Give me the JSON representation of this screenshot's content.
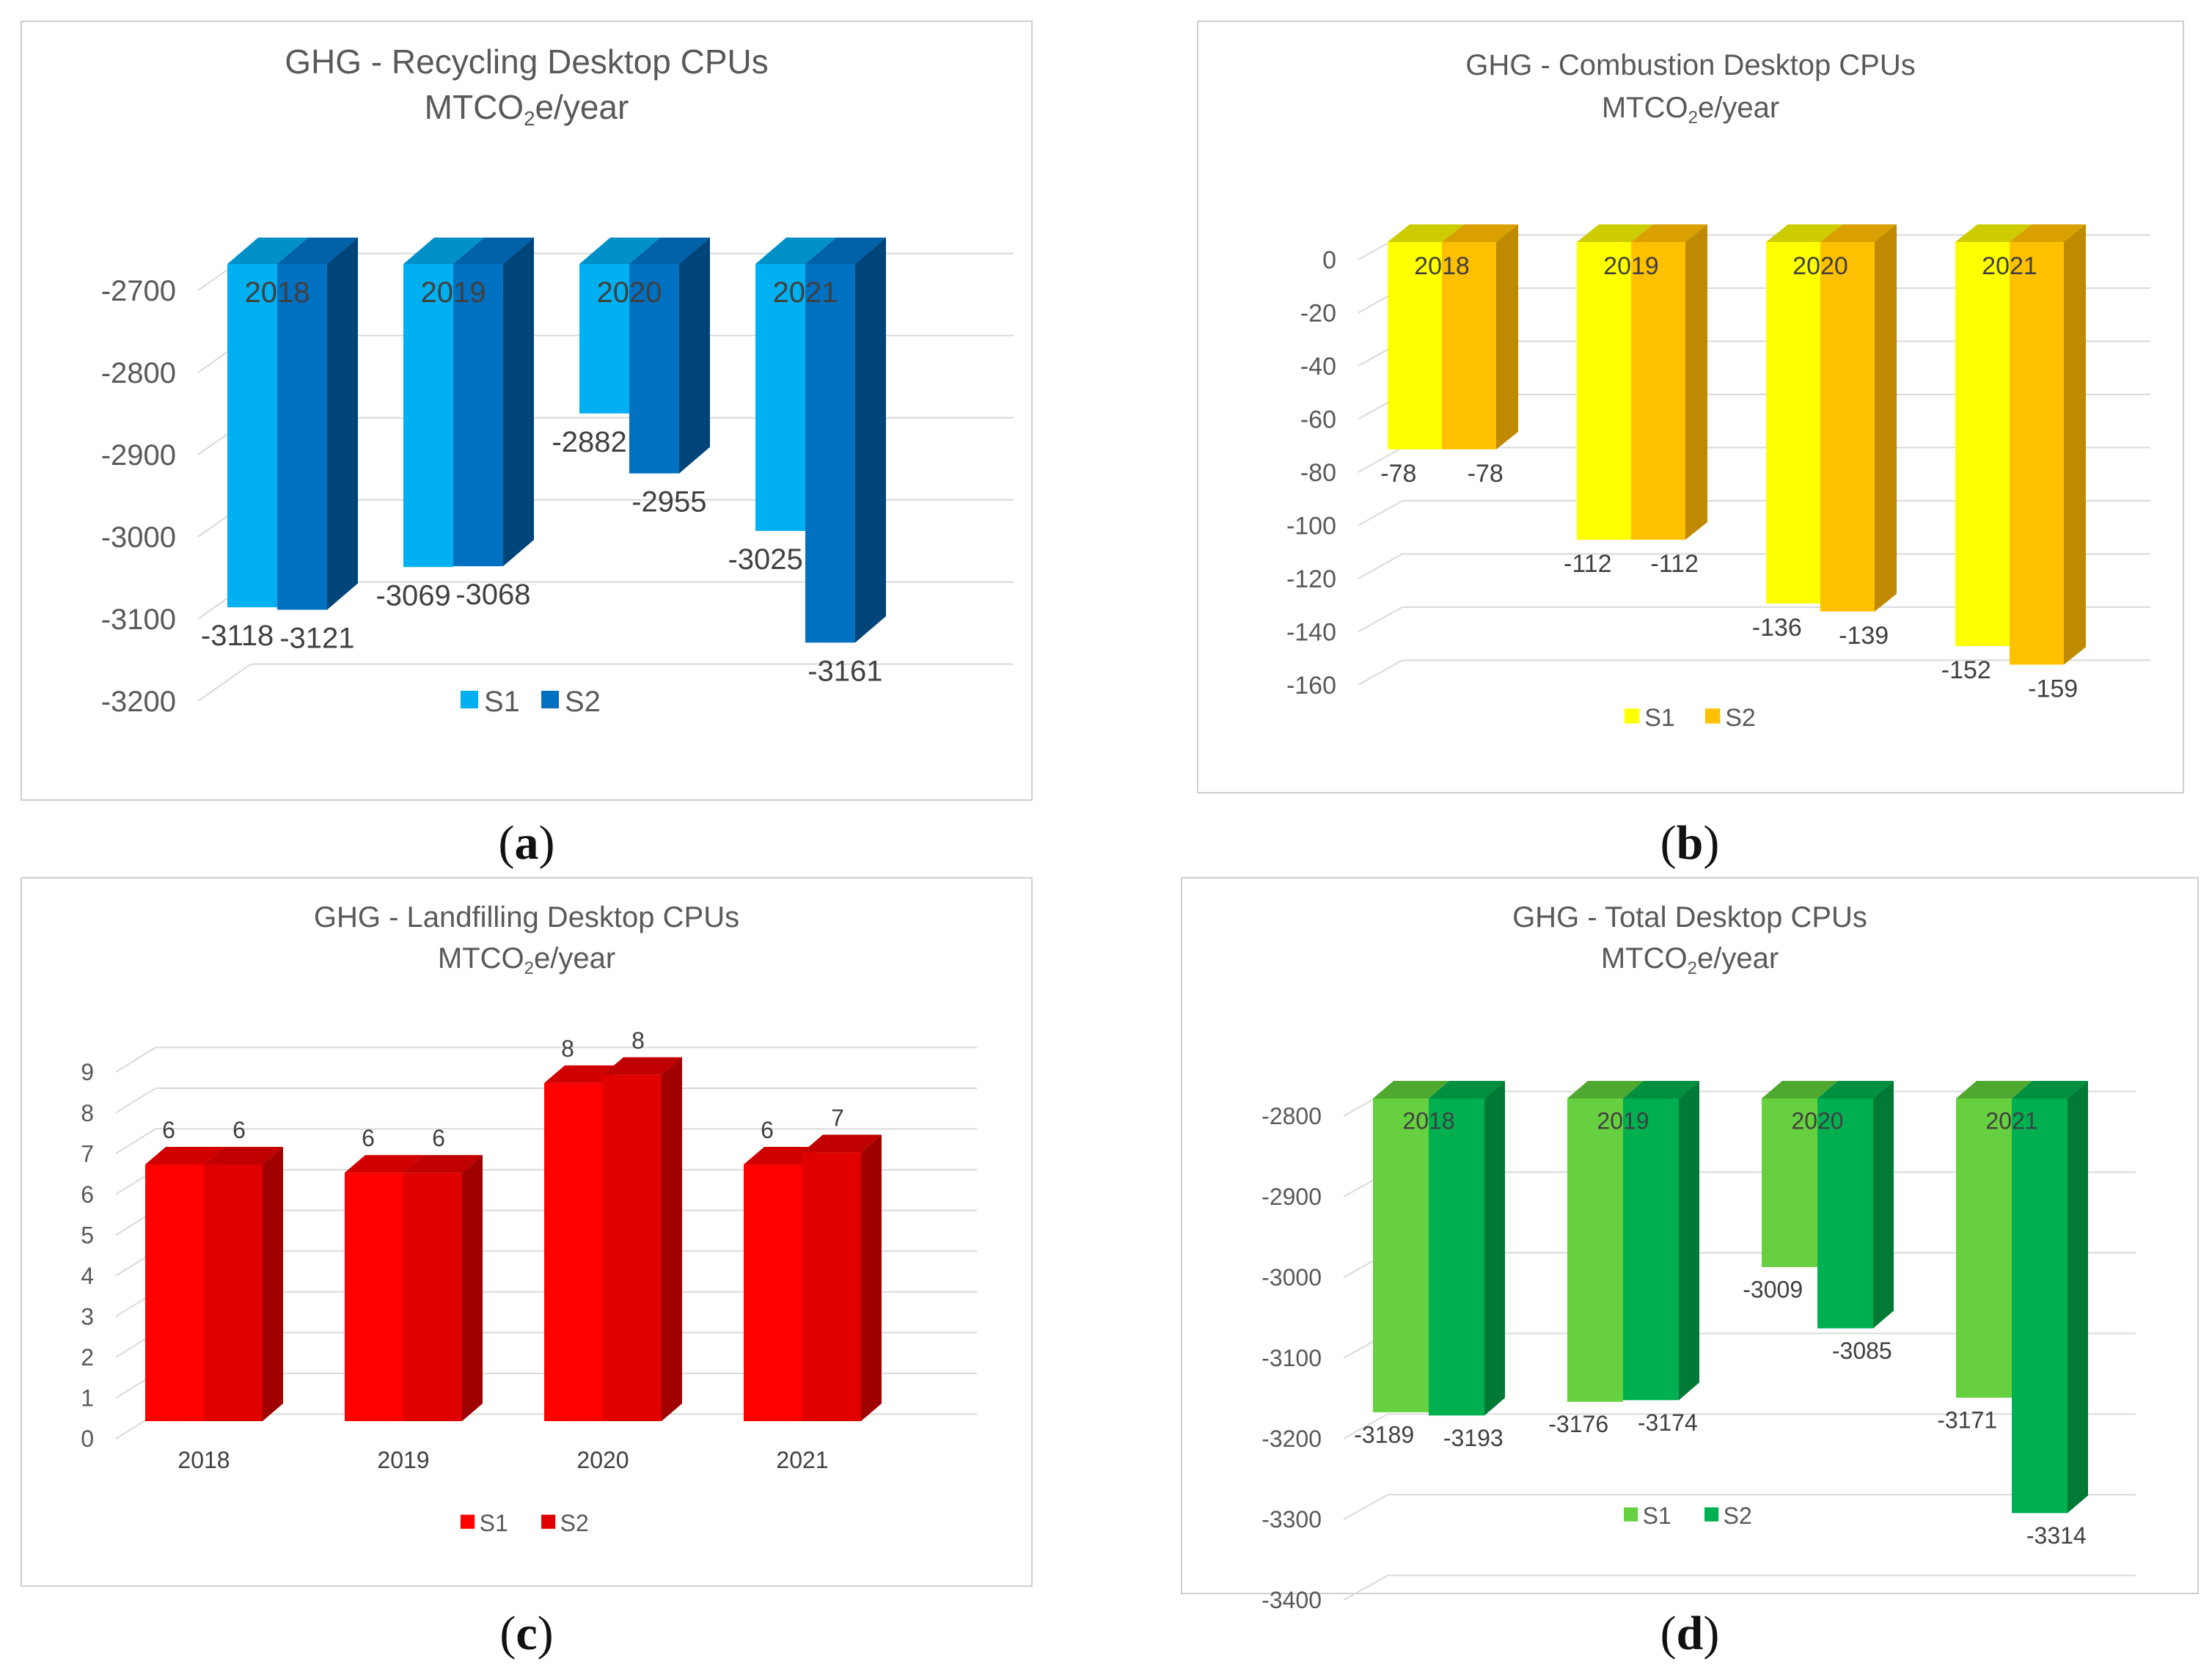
{
  "panel_labels": [
    "a",
    "b",
    "c",
    "d"
  ],
  "chart_data": [
    {
      "id": "a",
      "type": "bar",
      "title_line1": "GHG  - Recycling Desktop CPUs",
      "title_line2_pre": "MTCO",
      "title_line2_sub": "2",
      "title_line2_post": "e/year",
      "categories": [
        "2018",
        "2019",
        "2020",
        "2021"
      ],
      "series": [
        {
          "name": "S1",
          "values": [
            -3118,
            -3069,
            -2882,
            -3025
          ],
          "labels": [
            "-3118",
            "-3069",
            "-2882",
            "-3025"
          ]
        },
        {
          "name": "S2",
          "values": [
            -3121,
            -3068,
            -2955,
            -3161
          ],
          "labels": [
            "-3121",
            "-3068",
            "-2955",
            "-3161"
          ]
        }
      ],
      "ylim": [
        -3200,
        -2700
      ],
      "yticks": [
        "-2700",
        "-2800",
        "-2900",
        "-3000",
        "-3100",
        "-3200"
      ],
      "ytick_values": [
        -2700,
        -2800,
        -2900,
        -3000,
        -3100,
        -3200
      ],
      "category_label_position": "inside-top",
      "colors": {
        "S1_front": "#00b0f0",
        "S1_top": "#0090c8",
        "S2_front": "#0070c0",
        "S2_top": "#0060a8",
        "S2_side": "#00457a"
      },
      "legend": {
        "position": "bottom",
        "entries": [
          "S1",
          "S2"
        ]
      }
    },
    {
      "id": "b",
      "type": "bar",
      "title_line1": "GHG  - Combustion Desktop CPUs",
      "title_line2_pre": "MTCO",
      "title_line2_sub": "2",
      "title_line2_post": "e/year",
      "categories": [
        "2018",
        "2019",
        "2020",
        "2021"
      ],
      "series": [
        {
          "name": "S1",
          "values": [
            -78,
            -112,
            -136,
            -152
          ],
          "labels": [
            "-78",
            "-112",
            "-136",
            "-152"
          ]
        },
        {
          "name": "S2",
          "values": [
            -78,
            -112,
            -139,
            -159
          ],
          "labels": [
            "-78",
            "-112",
            "-139",
            "-159"
          ]
        }
      ],
      "ylim": [
        -160,
        0
      ],
      "yticks": [
        "0",
        "-20",
        "-40",
        "-60",
        "-80",
        "-100",
        "-120",
        "-140",
        "-160"
      ],
      "ytick_values": [
        0,
        -20,
        -40,
        -60,
        -80,
        -100,
        -120,
        -140,
        -160
      ],
      "category_label_position": "inside-top",
      "colors": {
        "S1_front": "#ffff00",
        "S1_top": "#cccc00",
        "S2_front": "#ffc000",
        "S2_top": "#d9a000",
        "S2_side": "#bf8a00"
      },
      "legend": {
        "position": "bottom",
        "entries": [
          "S1",
          "S2"
        ]
      }
    },
    {
      "id": "c",
      "type": "bar",
      "title_line1": "GHG  - Landfilling Desktop CPUs",
      "title_line2_pre": "MTCO",
      "title_line2_sub": "2",
      "title_line2_post": "e/year",
      "categories": [
        "2018",
        "2019",
        "2020",
        "2021"
      ],
      "series": [
        {
          "name": "S1",
          "values": [
            6.3,
            6.1,
            8.3,
            6.3
          ],
          "labels": [
            "6",
            "6",
            "8",
            "6"
          ]
        },
        {
          "name": "S2",
          "values": [
            6.3,
            6.1,
            8.5,
            6.6
          ],
          "labels": [
            "6",
            "6",
            "8",
            "7"
          ]
        }
      ],
      "ylim": [
        0,
        9
      ],
      "yticks": [
        "0",
        "1",
        "2",
        "3",
        "4",
        "5",
        "6",
        "7",
        "8",
        "9"
      ],
      "ytick_values": [
        0,
        1,
        2,
        3,
        4,
        5,
        6,
        7,
        8,
        9
      ],
      "category_label_position": "below-axis",
      "colors": {
        "S1_front": "#ff0000",
        "S1_top": "#d00000",
        "S2_front": "#e00000",
        "S2_top": "#c00000",
        "S2_side": "#a00000"
      },
      "legend": {
        "position": "bottom",
        "entries": [
          "S1",
          "S2"
        ]
      }
    },
    {
      "id": "d",
      "type": "bar",
      "title_line1": "GHG  - Total Desktop CPUs",
      "title_line2_pre": "MTCO",
      "title_line2_sub": "2",
      "title_line2_post": "e/year",
      "categories": [
        "2018",
        "2019",
        "2020",
        "2021"
      ],
      "series": [
        {
          "name": "S1",
          "values": [
            -3189,
            -3176,
            -3009,
            -3171
          ],
          "labels": [
            "-3189",
            "-3176",
            "-3009",
            "-3171"
          ]
        },
        {
          "name": "S2",
          "values": [
            -3193,
            -3174,
            -3085,
            -3314
          ],
          "labels": [
            "-3193",
            "-3174",
            "-3085",
            "-3314"
          ]
        }
      ],
      "ylim": [
        -3400,
        -2800
      ],
      "yticks": [
        "-2800",
        "-2900",
        "-3000",
        "-3100",
        "-3200",
        "-3300",
        "-3400"
      ],
      "ytick_values": [
        -2800,
        -2900,
        -3000,
        -3100,
        -3200,
        -3300,
        -3400
      ],
      "category_label_position": "inside-top",
      "colors": {
        "S1_front": "#66d040",
        "S1_top": "#4fa830",
        "S2_front": "#00b050",
        "S2_top": "#009040",
        "S2_side": "#007a35"
      },
      "legend": {
        "position": "bottom",
        "entries": [
          "S1",
          "S2"
        ]
      }
    }
  ]
}
